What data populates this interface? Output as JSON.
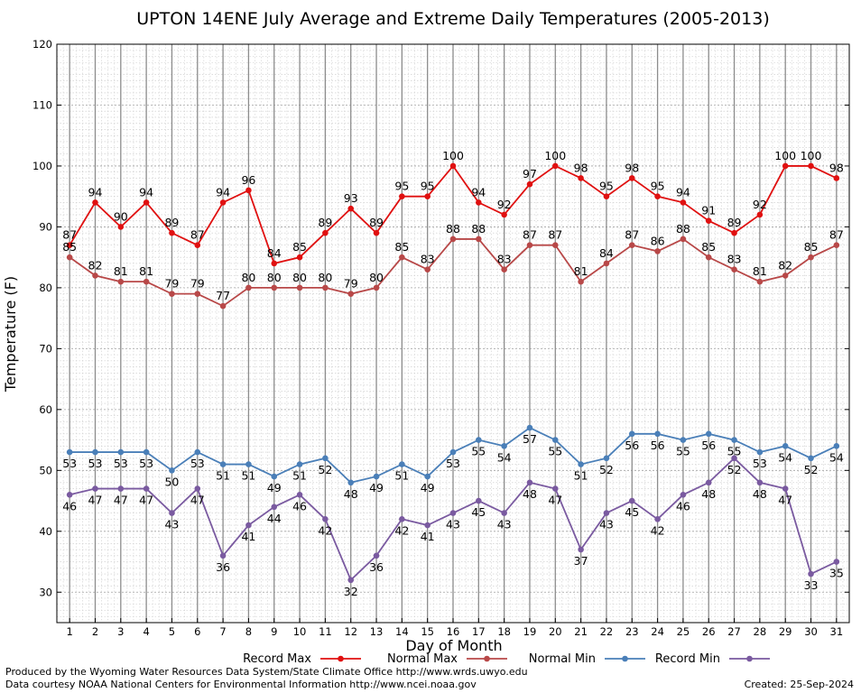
{
  "chart_data": {
    "type": "line",
    "title": "UPTON 14ENE July Average and Extreme Daily Temperatures (2005-2013)",
    "xlabel": "Day of Month",
    "ylabel": "Temperature (F)",
    "ylim": [
      25,
      120
    ],
    "yticks": [
      30,
      40,
      50,
      60,
      70,
      80,
      90,
      100,
      110,
      120
    ],
    "x": [
      1,
      2,
      3,
      4,
      5,
      6,
      7,
      8,
      9,
      10,
      11,
      12,
      13,
      14,
      15,
      16,
      17,
      18,
      19,
      20,
      21,
      22,
      23,
      24,
      25,
      26,
      27,
      28,
      29,
      30,
      31
    ],
    "grid": true,
    "legend_position": "bottom",
    "series": [
      {
        "name": "Record Max",
        "color": "#e01010",
        "values": [
          87,
          94,
          90,
          94,
          89,
          87,
          94,
          96,
          84,
          85,
          89,
          93,
          89,
          95,
          95,
          100,
          94,
          92,
          97,
          100,
          98,
          95,
          98,
          95,
          94,
          91,
          89,
          92,
          100,
          100,
          98
        ]
      },
      {
        "name": "Normal Max",
        "color": "#b84848",
        "values": [
          85,
          82,
          81,
          81,
          79,
          79,
          77,
          80,
          80,
          80,
          80,
          79,
          80,
          85,
          83,
          88,
          88,
          83,
          87,
          87,
          81,
          84,
          87,
          86,
          88,
          85,
          83,
          81,
          82,
          85,
          87
        ]
      },
      {
        "name": "Normal Min",
        "color": "#4a7fb8",
        "values": [
          53,
          53,
          53,
          53,
          50,
          53,
          51,
          51,
          49,
          51,
          52,
          48,
          49,
          51,
          49,
          53,
          55,
          54,
          57,
          55,
          51,
          52,
          56,
          56,
          55,
          56,
          55,
          53,
          54,
          52,
          54
        ]
      },
      {
        "name": "Record Min",
        "color": "#7a5aa0",
        "values": [
          46,
          47,
          47,
          47,
          43,
          47,
          36,
          41,
          44,
          46,
          42,
          32,
          36,
          42,
          41,
          43,
          45,
          43,
          48,
          47,
          37,
          43,
          45,
          42,
          46,
          48,
          52,
          48,
          47,
          33,
          35
        ]
      }
    ]
  },
  "footer": {
    "produced_by": "Produced by the Wyoming Water Resources Data System/State Climate Office http://www.wrds.uwyo.edu",
    "courtesy": "Data courtesy NOAA National Centers for Environmental Information http://www.ncei.noaa.gov",
    "created": "Created:  25-Sep-2024"
  }
}
